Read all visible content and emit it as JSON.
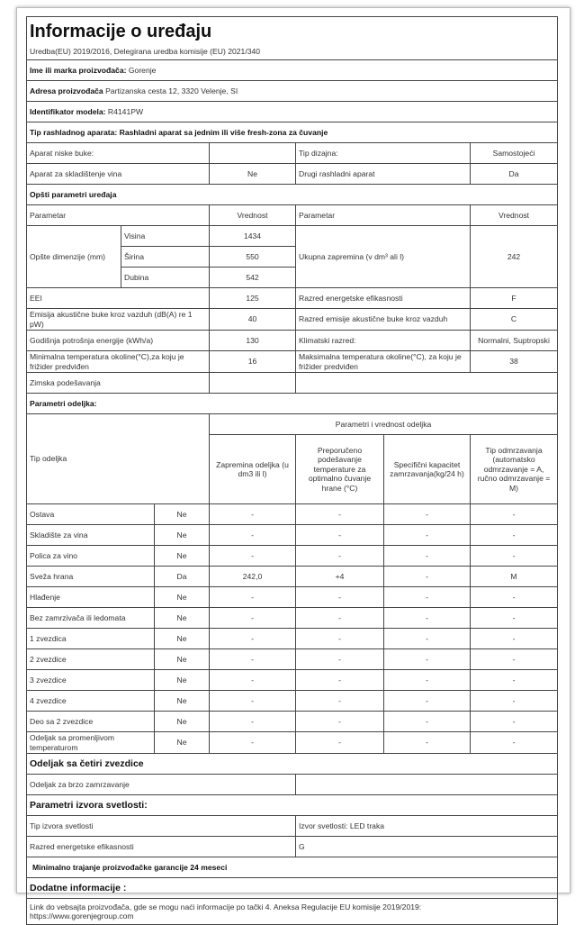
{
  "header": {
    "title": "Informacije o uređaju",
    "subtitle": "Uredba(EU) 2019/2016, Delegirana uredba komisije (EU) 2021/340"
  },
  "manufacturer": {
    "label": "Ime ili marka proizvođača:",
    "value": "Gorenje"
  },
  "address": {
    "label": "Adresa proizvođača",
    "value": "Partizanska cesta 12, 3320 Velenje, SI"
  },
  "model": {
    "label": "Identifikator modela:",
    "value": "R4141PW"
  },
  "appliance_type": "Tip rashladnog aparata: Rashladni aparat sa jednim ili više fresh-zona za čuvanje",
  "basic": {
    "low_noise_label": "Aparat niske buke:",
    "low_noise_value": "",
    "design_label": "Tip dizajna:",
    "design_value": "Samostojeći",
    "wine_label": "Aparat za skladištenje vina",
    "wine_value": "Ne",
    "other_label": "Drugi rashladni aparat",
    "other_value": "Da"
  },
  "general": {
    "title": "Opšti parametri uređaja",
    "col_param": "Parametar",
    "col_value": "Vrednost",
    "dimensions_label": "Opšte dimenzije (mm)",
    "dimensions": [
      {
        "label": "Visina",
        "value": "1434"
      },
      {
        "label": "Širina",
        "value": "550"
      },
      {
        "label": "Dubina",
        "value": "542"
      }
    ],
    "volume_label": "Ukupna zapremina (v dm³ ali l)",
    "volume_value": "242",
    "rows": [
      {
        "l": "EEI",
        "v": "125",
        "r": "Razred energetske efikasnosti",
        "rv": "F"
      },
      {
        "l": "Emisija akustične buke kroz vazduh (dB(A) re 1 pW)",
        "v": "40",
        "r": "Razred emisije akustične buke kroz vazduh",
        "rv": "C"
      },
      {
        "l": "Godišnja potrošnja energije (kWh/a)",
        "v": "130",
        "r": "Klimatski  razred:",
        "rv": "Normalni, Suptropski"
      },
      {
        "l": "Minimalna temperatura okoline(°C),za koju je frižider predviđen",
        "v": "16",
        "r": "Maksimalna temperatura okoline(°C), za koju je frižider predviđen",
        "rv": "38"
      }
    ],
    "winter_label": "Zimska podešavanja",
    "winter_value": ""
  },
  "compartments": {
    "title": "Parametri odeljka:",
    "type_header": "Tip odeljka",
    "group_header": "Parametri i vrednost odeljka",
    "headers": [
      "Zapremina odeljka (u dm3 ili l)",
      "Preporučeno podešavanje temperature za optimalno čuvanje hrane (°C)",
      "Specifični kapacitet zamrzavanja(kg/24 h)",
      "Tip odmrzavanja (automatsko odmrzavanje = A, ručno odmrzavanje = M)"
    ],
    "rows": [
      [
        "Ostava",
        "Ne",
        "-",
        "-",
        "-",
        "-"
      ],
      [
        "Skladište za vina",
        "Ne",
        "-",
        "-",
        "-",
        "-"
      ],
      [
        "Polica za vino",
        "Ne",
        "-",
        "-",
        "-",
        "-"
      ],
      [
        "Sveža  hrana",
        "Da",
        "242,0",
        "+4",
        "-",
        "M"
      ],
      [
        "Hlađenje",
        "Ne",
        "-",
        "-",
        "-",
        "-"
      ],
      [
        "Bez zamrzivača ili ledomata",
        "Ne",
        "-",
        "-",
        "-",
        "-"
      ],
      [
        "1 zvezdica",
        "Ne",
        "-",
        "-",
        "-",
        "-"
      ],
      [
        "2 zvezdice",
        "Ne",
        "-",
        "-",
        "-",
        "-"
      ],
      [
        "3 zvezdice",
        "Ne",
        "-",
        "-",
        "-",
        "-"
      ],
      [
        "4 zvezdice",
        "Ne",
        "-",
        "-",
        "-",
        "-"
      ],
      [
        "Deo sa 2 zvezdice",
        "Ne",
        "-",
        "-",
        "-",
        "-"
      ],
      [
        "Odeljak sa promenljivom temperaturom",
        "Ne",
        "-",
        "-",
        "-",
        "-"
      ]
    ]
  },
  "four_star": {
    "title": "Odeljak sa četiri zvezdice",
    "fast_freeze_label": "Odeljak za brzo zamrzavanje",
    "fast_freeze_value": ""
  },
  "light": {
    "title": "Parametri izvora svetlosti:",
    "type_label": "Tip izvora svetlosti",
    "type_value": "Izvor svetlosti: LED traka",
    "class_label": "Razred energetske efikasnosti",
    "class_value": "G"
  },
  "warranty": "Minimalno trajanje proizvođačke garancije  24 meseci",
  "additional": {
    "title": "Dodatne informacije :",
    "text": "Link do vebsajta proizvođača, gde se mogu naći informacije po tački 4. Aneksa Regulacije EU komisije 2019/2019:",
    "url": "https://www.gorenjegroup.com"
  }
}
